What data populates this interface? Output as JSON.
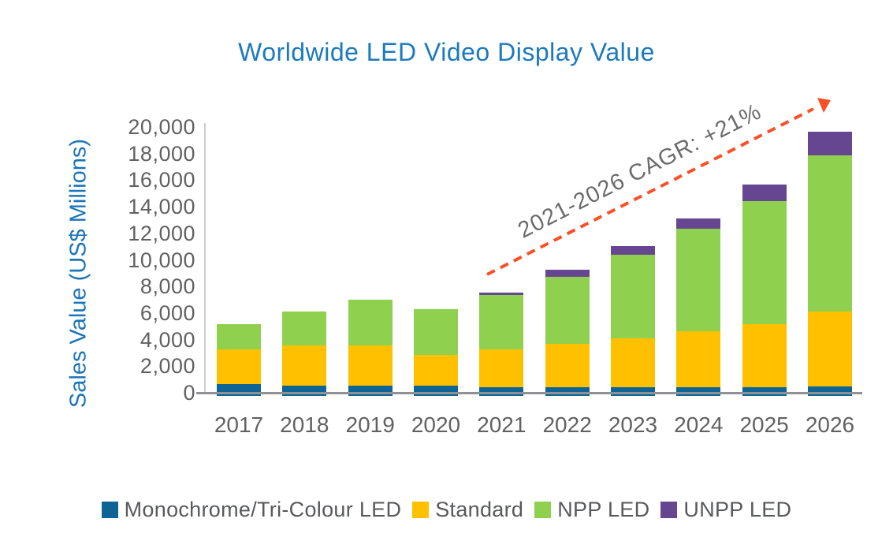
{
  "title": "Worldwide LED Video Display Value",
  "y_axis_title": "Sales Value (US$ Millions)",
  "annotation": "2021-2026 CAGR: +21%",
  "colors": {
    "title_blue": "#1B7ABE",
    "axis_title_blue": "#1B75B8",
    "tick_text_gray": "#616161",
    "annotation_gray": "#6B6B6B",
    "legend_text_gray": "#58595B",
    "vertical_axis_line": "#CDCDCD",
    "horizontal_axis_line": "#8F9194",
    "arrow_orange": "#F95028",
    "series_blue": "#0F6496",
    "series_yellow": "#FFC000",
    "series_green": "#8FD04F",
    "series_purple": "#664690"
  },
  "chart_data": {
    "type": "bar",
    "stacked": true,
    "title": "Worldwide LED Video Display Value",
    "xlabel": "",
    "ylabel": "Sales Value (US$ Millions)",
    "ylim": [
      0,
      20000
    ],
    "ytick_step": 2000,
    "ytick_labels": [
      "0",
      "2,000",
      "4,000",
      "6,000",
      "8,000",
      "10,000",
      "12,000",
      "14,000",
      "16,000",
      "18,000",
      "20,000"
    ],
    "grid": false,
    "legend_position": "bottom",
    "categories": [
      "2017",
      "2018",
      "2019",
      "2020",
      "2021",
      "2022",
      "2023",
      "2024",
      "2025",
      "2026"
    ],
    "series": [
      {
        "name": "Monochrome/Tri-Colour LED",
        "color": "#0F6496",
        "values": [
          700,
          600,
          600,
          600,
          500,
          500,
          500,
          500,
          500,
          550
        ]
      },
      {
        "name": "Standard",
        "color": "#FFC000",
        "values": [
          2600,
          3000,
          3000,
          2300,
          2800,
          3250,
          3650,
          4200,
          4700,
          5600
        ]
      },
      {
        "name": "NPP LED",
        "color": "#8FD04F",
        "values": [
          1950,
          2600,
          3450,
          3450,
          4100,
          5050,
          6300,
          7700,
          9300,
          11800
        ]
      },
      {
        "name": "UNPP LED",
        "color": "#664690",
        "values": [
          0,
          0,
          0,
          0,
          200,
          500,
          650,
          800,
          1250,
          1750
        ]
      }
    ],
    "annotation": "2021-2026 CAGR: +21%",
    "annotation_arrow": {
      "from_year": "2021",
      "to_year": "2026",
      "cagr_percent": 21
    }
  }
}
